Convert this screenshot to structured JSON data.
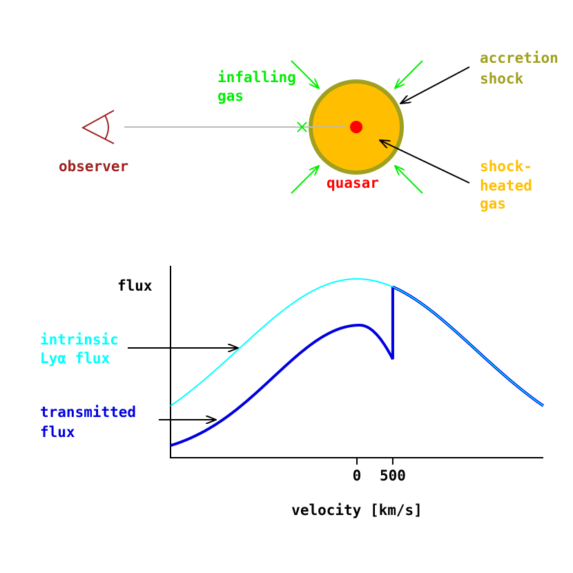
{
  "diagram": {
    "labels": {
      "infalling_gas": [
        "infalling",
        "gas"
      ],
      "accretion_shock": [
        "accretion",
        "shock"
      ],
      "observer": "observer",
      "quasar": "quasar",
      "shock_heated_gas": [
        "shock-",
        "heated",
        "gas"
      ]
    }
  },
  "plot": {
    "y_label": "flux",
    "x_label": "velocity [km/s]",
    "xlim": [
      -2600,
      2600
    ],
    "xticks": [
      0,
      500
    ],
    "intrinsic_label": [
      "intrinsic",
      "Lyα flux"
    ],
    "transmitted_label": [
      "transmitted",
      "flux"
    ],
    "intrinsic_color": "#00ffff",
    "transmitted_color": "#0000e0"
  }
}
